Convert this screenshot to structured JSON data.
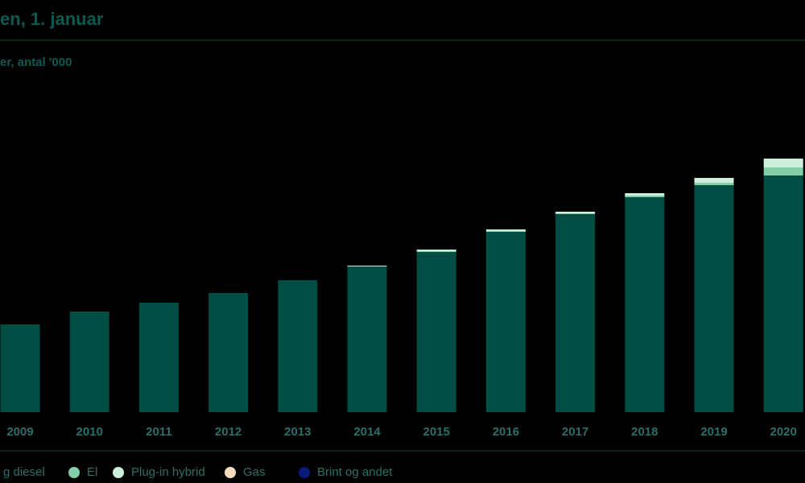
{
  "chart_data": {
    "type": "bar",
    "stacked": true,
    "title": "en, 1. januar",
    "subtitle": "er, antal '000",
    "categories": [
      "2009",
      "2010",
      "2011",
      "2012",
      "2013",
      "2014",
      "2015",
      "2016",
      "2017",
      "2018",
      "2019",
      "2020"
    ],
    "series": [
      {
        "name": "g diesel",
        "color": "#004d44",
        "values": [
          109,
          125,
          136,
          148,
          164,
          181,
          199,
          224,
          246,
          267,
          282,
          294
        ]
      },
      {
        "name": "El",
        "color": "#84cfa8",
        "values": [
          0,
          0,
          0,
          0,
          0,
          0,
          1,
          1,
          1,
          2,
          3,
          10
        ]
      },
      {
        "name": "Plug-in hybrid",
        "color": "#cdeedb",
        "values": [
          0,
          0,
          0,
          0,
          0,
          1,
          2,
          2,
          2,
          3,
          6,
          11
        ]
      },
      {
        "name": "Gas",
        "color": "#f6dcbc",
        "values": [
          0,
          0,
          0,
          0,
          0,
          0,
          0,
          0,
          0,
          0,
          0,
          0
        ]
      },
      {
        "name": "Brint og andet",
        "color": "#0a1a78",
        "values": [
          0,
          0,
          0,
          0,
          0,
          0,
          0,
          0,
          0,
          0,
          0,
          0
        ]
      }
    ],
    "ylim": [
      0,
      320
    ]
  }
}
